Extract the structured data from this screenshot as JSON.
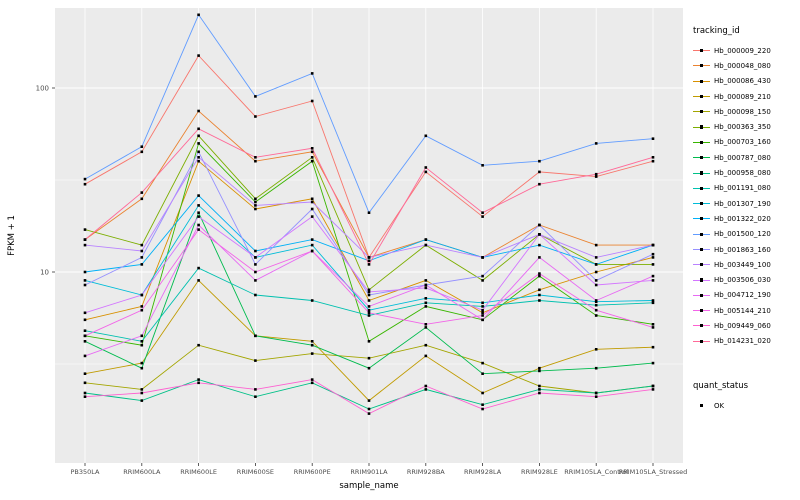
{
  "legend": {
    "tracking_title": "tracking_id",
    "quant_title": "quant_status",
    "quant_value": "OK"
  },
  "chart_data": {
    "type": "line",
    "title": "",
    "xlabel": "sample_name",
    "ylabel": "FPKM + 1",
    "y_scale": "log10",
    "y_tick_labels": [
      "100",
      "10"
    ],
    "y_tick_values": [
      100,
      10
    ],
    "y_minor_values": [
      31.623,
      3.1623
    ],
    "ylim_log": [
      0.9,
      2.45
    ],
    "grid": true,
    "panel_bg": "#EBEBEB",
    "grid_color": "#FFFFFF",
    "point_color": "#000000",
    "legend_position": "right",
    "categories": [
      "PB350LA",
      "RRIM600LA",
      "RRIM600LE",
      "RRIM600SE",
      "RRIM600PE",
      "RRIM901LA",
      "RRIM928BA",
      "RRIM928LA",
      "RRIM928LE",
      "RRIM105LA_Control",
      "RRIM105LA_Stressed"
    ],
    "series": [
      {
        "name": "Hb_000009_220",
        "color": "#F8766D",
        "values": [
          30,
          45,
          150,
          70,
          85,
          12,
          35,
          20,
          35,
          33,
          40
        ]
      },
      {
        "name": "Hb_000048_080",
        "color": "#EA8331",
        "values": [
          15,
          25,
          75,
          40,
          45,
          12,
          15,
          12,
          18,
          14,
          14
        ]
      },
      {
        "name": "Hb_000086_430",
        "color": "#D89000",
        "values": [
          5.5,
          6.5,
          40,
          22,
          25,
          7,
          9,
          6,
          8,
          10,
          12
        ]
      },
      {
        "name": "Hb_000089_210",
        "color": "#C09B00",
        "values": [
          2.8,
          3.2,
          9,
          4.5,
          4.2,
          2.0,
          3.5,
          2.2,
          3.0,
          3.8,
          3.9
        ]
      },
      {
        "name": "Hb_000098_150",
        "color": "#A3A500",
        "values": [
          2.5,
          2.3,
          4.0,
          3.3,
          3.6,
          3.4,
          4.0,
          3.2,
          2.4,
          2.2,
          2.4
        ]
      },
      {
        "name": "Hb_000363_350",
        "color": "#7CAE00",
        "values": [
          17,
          14,
          55,
          25,
          42,
          8,
          14,
          9,
          16,
          11,
          11
        ]
      },
      {
        "name": "Hb_000703_160",
        "color": "#39B600",
        "values": [
          4.5,
          4.0,
          50,
          24,
          40,
          4.2,
          6.5,
          5.5,
          9.5,
          5.8,
          5.2
        ]
      },
      {
        "name": "Hb_000787_080",
        "color": "#00BB4E",
        "values": [
          4.2,
          3.0,
          21,
          4.5,
          4.0,
          3.0,
          5.0,
          2.8,
          2.9,
          3.0,
          3.2
        ]
      },
      {
        "name": "Hb_000958_080",
        "color": "#00C087",
        "values": [
          2.2,
          2.0,
          2.6,
          2.1,
          2.5,
          1.8,
          2.3,
          1.9,
          2.3,
          2.2,
          2.4
        ]
      },
      {
        "name": "Hb_001191_080",
        "color": "#00C0AF",
        "values": [
          4.8,
          4.2,
          10.5,
          7.5,
          7.0,
          5.8,
          6.8,
          6.5,
          7.0,
          6.6,
          6.8
        ]
      },
      {
        "name": "Hb_001307_190",
        "color": "#00BCD8",
        "values": [
          9,
          7.5,
          23,
          12,
          14,
          6.2,
          7.2,
          6.8,
          7.5,
          6.9,
          7.0
        ]
      },
      {
        "name": "Hb_001322_020",
        "color": "#00B0F6",
        "values": [
          10,
          11,
          26,
          13,
          15,
          11.5,
          15,
          12,
          14,
          11,
          14
        ]
      },
      {
        "name": "Hb_001500_120",
        "color": "#619CFF",
        "values": [
          32,
          48,
          250,
          90,
          120,
          21,
          55,
          38,
          40,
          50,
          53
        ]
      },
      {
        "name": "Hb_001863_160",
        "color": "#9590FF",
        "values": [
          8.5,
          12,
          45,
          11,
          22,
          7.5,
          8.5,
          9.5,
          18,
          9,
          12.5
        ]
      },
      {
        "name": "Hb_003449_100",
        "color": "#B983FF",
        "values": [
          14,
          13,
          42,
          23,
          24,
          12,
          14,
          12,
          16,
          12,
          14
        ]
      },
      {
        "name": "Hb_003506_030",
        "color": "#D376FF",
        "values": [
          6,
          7.5,
          20,
          12,
          20,
          7.8,
          8.2,
          6.2,
          16,
          8.5,
          9
        ]
      },
      {
        "name": "Hb_004712_190",
        "color": "#E76BF3",
        "values": [
          3.5,
          4.5,
          18,
          9,
          13,
          6.5,
          8.5,
          5.5,
          12,
          7,
          9.5
        ]
      },
      {
        "name": "Hb_005144_210",
        "color": "#F265E8",
        "values": [
          4.5,
          6.2,
          17,
          10,
          13,
          6.0,
          5.2,
          5.8,
          9.8,
          6.2,
          5.0
        ]
      },
      {
        "name": "Hb_009449_060",
        "color": "#FD61D1",
        "values": [
          2.1,
          2.2,
          2.5,
          2.3,
          2.6,
          1.7,
          2.4,
          1.8,
          2.2,
          2.1,
          2.3
        ]
      },
      {
        "name": "Hb_014231_020",
        "color": "#FF6A98",
        "values": [
          15,
          27,
          60,
          42,
          47,
          11,
          37,
          21,
          30,
          34,
          42
        ]
      }
    ]
  }
}
